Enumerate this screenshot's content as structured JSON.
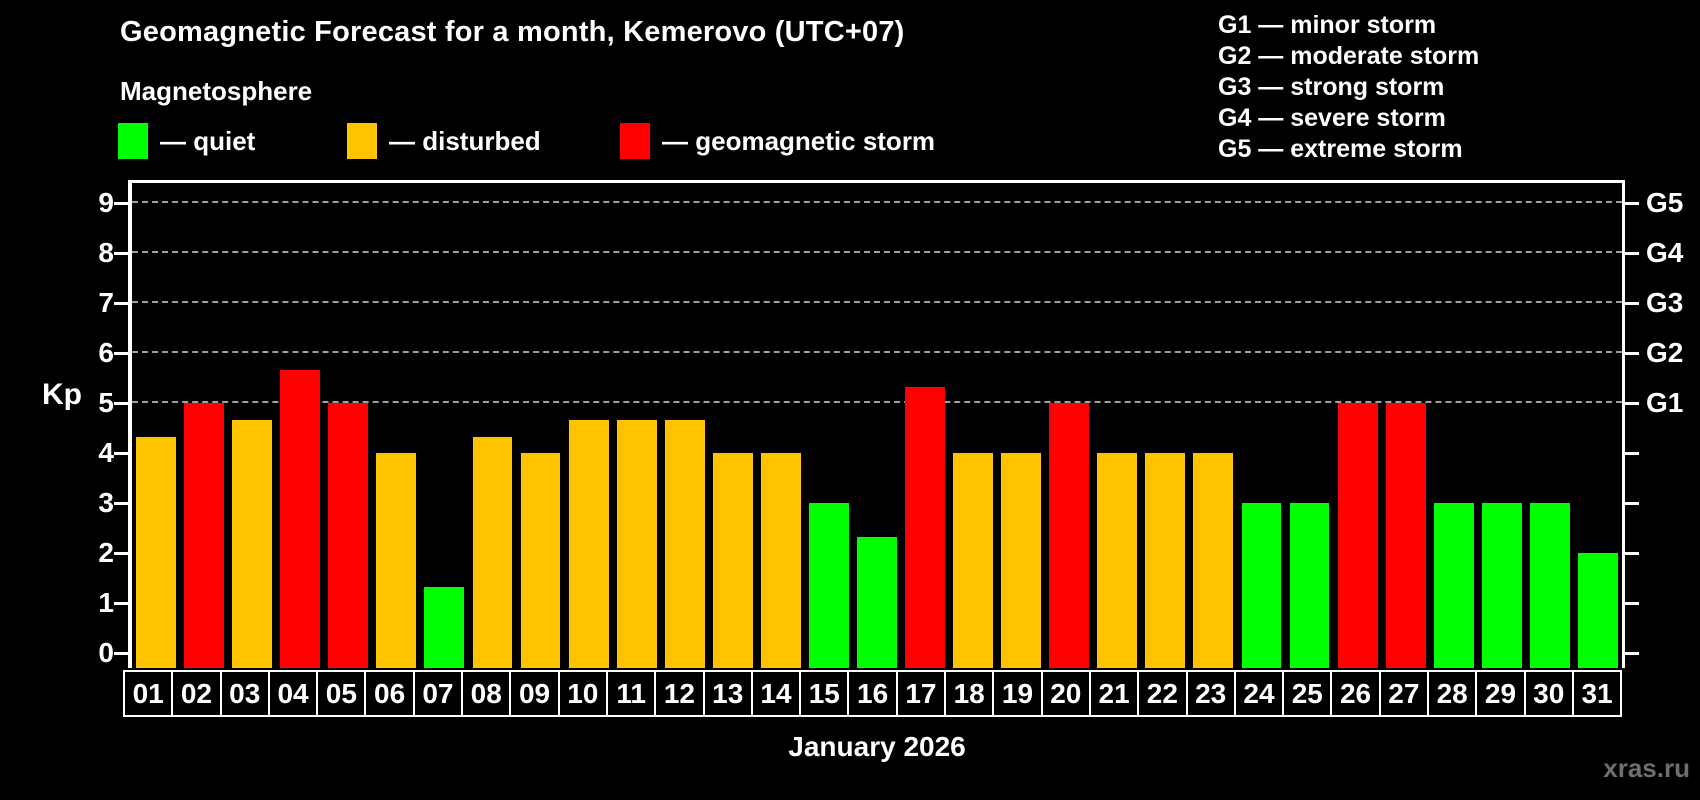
{
  "header": {
    "title": "Geomagnetic Forecast for a month, Kemerovo (UTC+07)",
    "subtitle": "Magnetosphere"
  },
  "legend": {
    "items": [
      {
        "key": "quiet",
        "label": "— quiet"
      },
      {
        "key": "disturbed",
        "label": "— disturbed"
      },
      {
        "key": "storm",
        "label": "— geomagnetic storm"
      }
    ]
  },
  "g_legend": {
    "lines": [
      "G1 — minor storm",
      "G2 — moderate storm",
      "G3 — strong storm",
      "G4 — severe storm",
      "G5 — extreme storm"
    ]
  },
  "axes": {
    "y_label": "Kp",
    "x_title": "January 2026"
  },
  "watermark": "xras.ru",
  "colors": {
    "quiet": "#00FF00",
    "disturbed": "#FFC300",
    "storm": "#FF0000",
    "grid": "#A0A0A0",
    "axis": "#FFFFFF",
    "background": "#000000",
    "watermark_text": "#6E6E6E"
  },
  "chart_data": {
    "type": "bar",
    "title": "Geomagnetic Forecast for a month, Kemerovo (UTC+07)",
    "subtitle": "Magnetosphere",
    "xlabel": "January 2026",
    "ylabel": "Kp",
    "ylim": [
      0,
      9
    ],
    "grid": "dashed horizontal at Kp 5-9 only",
    "legend_position": "top-left",
    "categories": [
      "01",
      "02",
      "03",
      "04",
      "05",
      "06",
      "07",
      "08",
      "09",
      "10",
      "11",
      "12",
      "13",
      "14",
      "15",
      "16",
      "17",
      "18",
      "19",
      "20",
      "21",
      "22",
      "23",
      "24",
      "25",
      "26",
      "27",
      "28",
      "29",
      "30",
      "31"
    ],
    "values": [
      4.33,
      5,
      4.67,
      5.67,
      5,
      4,
      1.33,
      4.33,
      4,
      4.67,
      4.67,
      4.67,
      4,
      4,
      3,
      2.33,
      5.33,
      4,
      4,
      5,
      4,
      4,
      4,
      3,
      3,
      5,
      5,
      3,
      3,
      3,
      2
    ],
    "status": [
      "disturbed",
      "storm",
      "disturbed",
      "storm",
      "storm",
      "disturbed",
      "quiet",
      "disturbed",
      "disturbed",
      "disturbed",
      "disturbed",
      "disturbed",
      "disturbed",
      "disturbed",
      "quiet",
      "quiet",
      "storm",
      "disturbed",
      "disturbed",
      "storm",
      "disturbed",
      "disturbed",
      "disturbed",
      "quiet",
      "quiet",
      "storm",
      "storm",
      "quiet",
      "quiet",
      "quiet",
      "quiet"
    ],
    "yticks": [
      0,
      1,
      2,
      3,
      4,
      5,
      6,
      7,
      8,
      9
    ],
    "gridline_values": [
      5,
      6,
      7,
      8,
      9
    ],
    "right_axis_labels": [
      {
        "value": 5,
        "label": "G1"
      },
      {
        "value": 6,
        "label": "G2"
      },
      {
        "value": 7,
        "label": "G3"
      },
      {
        "value": 8,
        "label": "G4"
      },
      {
        "value": 9,
        "label": "G5"
      }
    ]
  }
}
